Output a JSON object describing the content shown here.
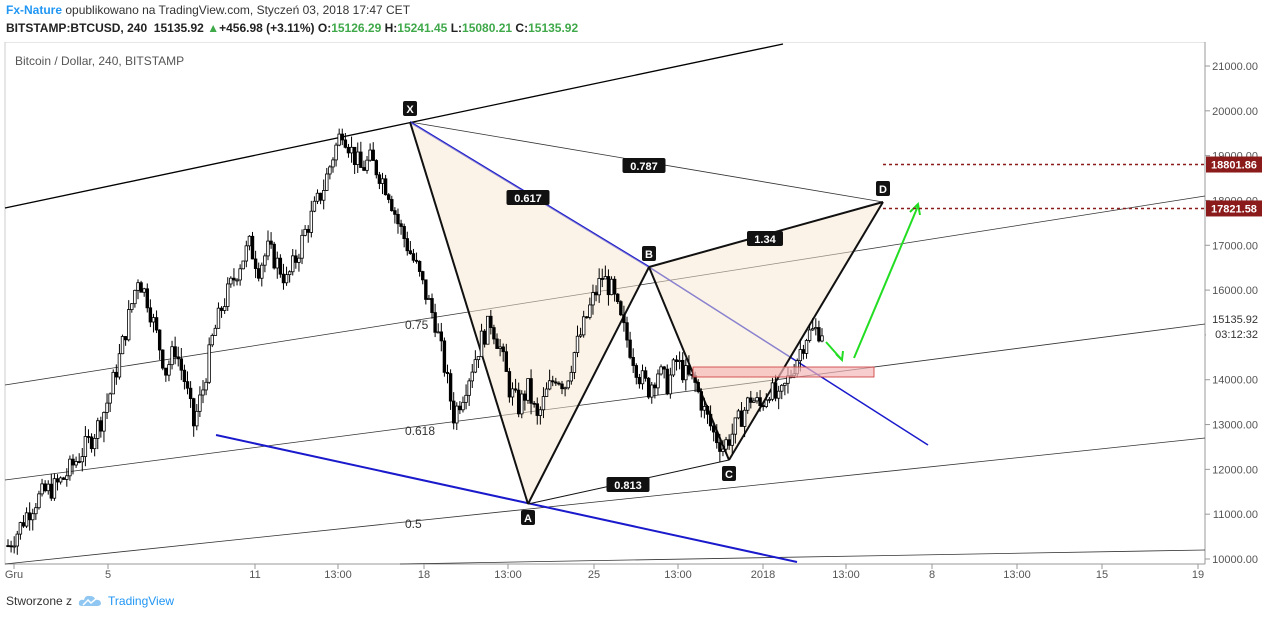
{
  "header": {
    "author": "Fx-Nature",
    "published_text": "opublikowano na TradingView.com, Styczeń 03, 2018 17:47 CET",
    "symbol": "BITSTAMP:BTCUSD, 240",
    "last": "15135.92",
    "change": "+456.98 (+3.11%)",
    "o_label": "O:",
    "o_value": "15126.29",
    "h_label": "H:",
    "h_value": "15241.45",
    "l_label": "L:",
    "l_value": "15080.21",
    "c_label": "C:",
    "c_value": "15135.92"
  },
  "footer": {
    "created_by": "Stworzone z",
    "brand": "TradingView"
  },
  "chart_data": {
    "type": "candlestick",
    "title": "Bitcoin / Dollar, 240, BITSTAMP",
    "ylim": [
      9900,
      21500
    ],
    "y_ticks": [
      10000,
      11000,
      12000,
      13000,
      14000,
      15000,
      16000,
      17000,
      18000,
      19000,
      20000,
      21000
    ],
    "y_tick_labels": [
      "10000.00",
      "11000.00",
      "12000.00",
      "13000.00",
      "14000.00",
      "15000.00",
      "16000.00",
      "17000.00",
      "18000.00",
      "19000.00",
      "20000.00",
      "21000.00"
    ],
    "x_tick_labels": [
      "Gru",
      "5",
      "11",
      "13:00",
      "18",
      "13:00",
      "25",
      "13:00",
      "2018",
      "13:00",
      "8",
      "13:00",
      "15",
      "19"
    ],
    "price_labels": [
      {
        "text": "18801.86",
        "value": 18801.86,
        "color": "#8b1a1a"
      },
      {
        "text": "17821.58",
        "value": 17821.58,
        "color": "#8b1a1a"
      }
    ],
    "current_price": "15135.92",
    "countdown": "03:12:32",
    "pattern_points": [
      {
        "label": "X",
        "price": 19750
      },
      {
        "label": "A",
        "price": 11200
      },
      {
        "label": "B",
        "price": 16500
      },
      {
        "label": "C",
        "price": 12200
      },
      {
        "label": "D",
        "price": 17850
      }
    ],
    "pattern_ratios": [
      "0.617",
      "0.787",
      "1.34",
      "0.813"
    ],
    "fib_labels": [
      "0.75",
      "0.618",
      "0.5"
    ],
    "close_path": [
      10300,
      10600,
      11000,
      11300,
      11500,
      11600,
      11800,
      12100,
      12400,
      12700,
      13100,
      13700,
      14500,
      15400,
      16300,
      15800,
      15000,
      14200,
      14700,
      14000,
      13000,
      13800,
      14900,
      15600,
      16100,
      16600,
      17000,
      16500,
      16900,
      16600,
      16200,
      16700,
      17300,
      17800,
      18300,
      19000,
      19600,
      19100,
      18700,
      18900,
      18600,
      18200,
      17500,
      17000,
      16500,
      15900,
      15300,
      14300,
      13200,
      13700,
      14300,
      14900,
      15300,
      14700,
      13800,
      13400,
      13800,
      13100,
      13700,
      14100,
      13900,
      14600,
      15200,
      15800,
      16300,
      16000,
      15300,
      14700,
      14100,
      13800,
      14200,
      13900,
      14400,
      14100,
      13900,
      13300,
      12800,
      12500,
      12800,
      13200,
      13600,
      13400,
      13800,
      13500,
      14000,
      14500,
      15000,
      15100
    ]
  }
}
